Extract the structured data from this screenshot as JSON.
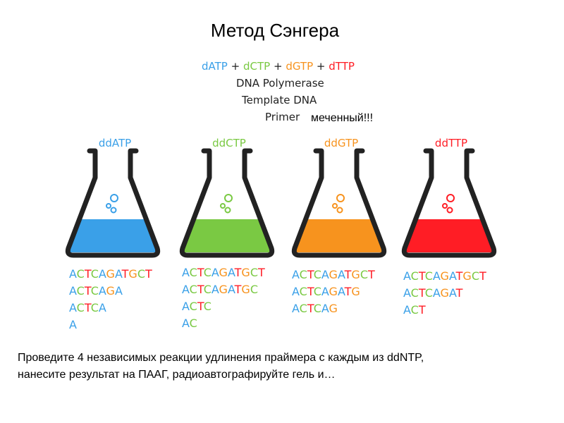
{
  "title": "Метод Сэнгера",
  "base_colors": {
    "A": "#3aa0e8",
    "C": "#7ac943",
    "G": "#f7931e",
    "T": "#ff1d25"
  },
  "reagents": {
    "mix": [
      "dATP",
      "+",
      "dCTP",
      "+",
      "dGTP",
      "+",
      "dTTP"
    ],
    "polymerase": "DNA Polymerase",
    "template": "Template DNA",
    "primer": "Primer",
    "note": "меченный!!!"
  },
  "flasks": [
    {
      "label": "ddATP",
      "sequences": [
        "ACTCAGATGCT",
        "ACTCAGA",
        "ACTCA",
        "A"
      ]
    },
    {
      "label": "ddCTP",
      "sequences": [
        "ACTCAGATGCT",
        "ACTCAGATGC",
        "ACTC",
        "AC"
      ]
    },
    {
      "label": "ddGTP",
      "sequences": [
        "ACTCAGATGCT",
        "ACTCAGATG",
        "ACTCAG"
      ]
    },
    {
      "label": "ddTTP",
      "sequences": [
        "ACTCAGATGCT",
        "ACTCAGAT",
        "ACT"
      ]
    }
  ],
  "instructions": [
    "Проведите 4 независимых реакции удлинения праймера с каждым из ddNTP,",
    "нанесите результат на ПААГ, радиоавтографируйте гель и…"
  ]
}
